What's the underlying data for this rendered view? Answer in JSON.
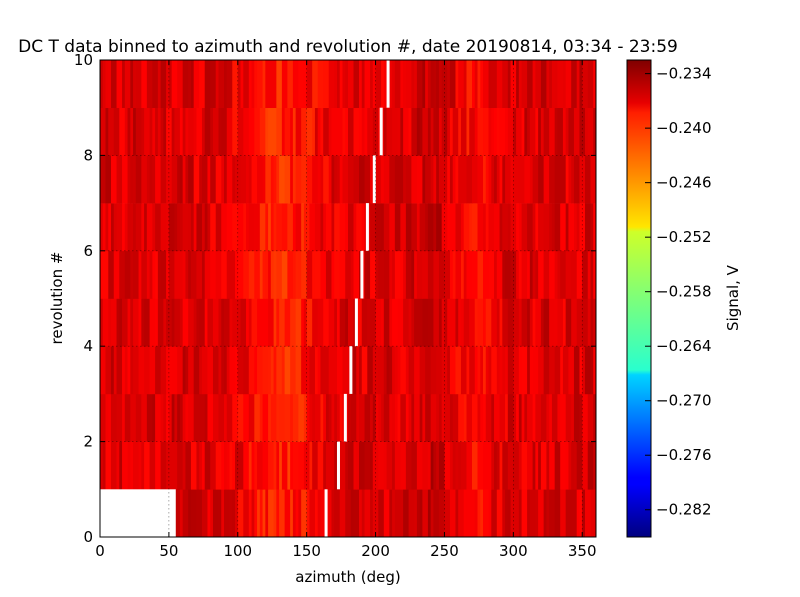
{
  "chart_data": {
    "type": "heatmap",
    "title": "DC T data binned to azimuth and revolution #, date 20190814, 03:34 - 23:59",
    "xlabel": "azimuth (deg)",
    "ylabel": "revolution #",
    "xlim": [
      0,
      360
    ],
    "ylim": [
      0,
      10
    ],
    "x_ticks": [
      "0",
      "50",
      "100",
      "150",
      "200",
      "250",
      "300",
      "350"
    ],
    "y_ticks": [
      "0",
      "2",
      "4",
      "6",
      "8",
      "10"
    ],
    "grid": true,
    "rows": [
      0,
      1,
      2,
      3,
      4,
      5,
      6,
      7,
      8,
      9
    ],
    "colorbar": {
      "label": "Signal, V",
      "min": -0.285,
      "max": -0.2325,
      "ticks": [
        "-0.234",
        "-0.240",
        "-0.246",
        "-0.252",
        "-0.258",
        "-0.264",
        "-0.270",
        "-0.276",
        "-0.282"
      ],
      "tick_values": [
        -0.234,
        -0.24,
        -0.246,
        -0.252,
        -0.258,
        -0.264,
        -0.27,
        -0.276,
        -0.282
      ]
    },
    "missing_data": [
      {
        "revolution": 0,
        "azimuth_range": [
          0,
          55
        ]
      }
    ],
    "gaps": [
      {
        "revolution": 0,
        "azimuth": 163
      },
      {
        "revolution": 1,
        "azimuth": 172
      },
      {
        "revolution": 2,
        "azimuth": 177
      },
      {
        "revolution": 3,
        "azimuth": 181
      },
      {
        "revolution": 4,
        "azimuth": 185
      },
      {
        "revolution": 5,
        "azimuth": 189
      },
      {
        "revolution": 6,
        "azimuth": 193
      },
      {
        "revolution": 7,
        "azimuth": 198
      },
      {
        "revolution": 8,
        "azimuth": 203
      },
      {
        "revolution": 9,
        "azimuth": 208
      }
    ],
    "typical_signal_range": [
      -0.2455,
      -0.233
    ]
  }
}
